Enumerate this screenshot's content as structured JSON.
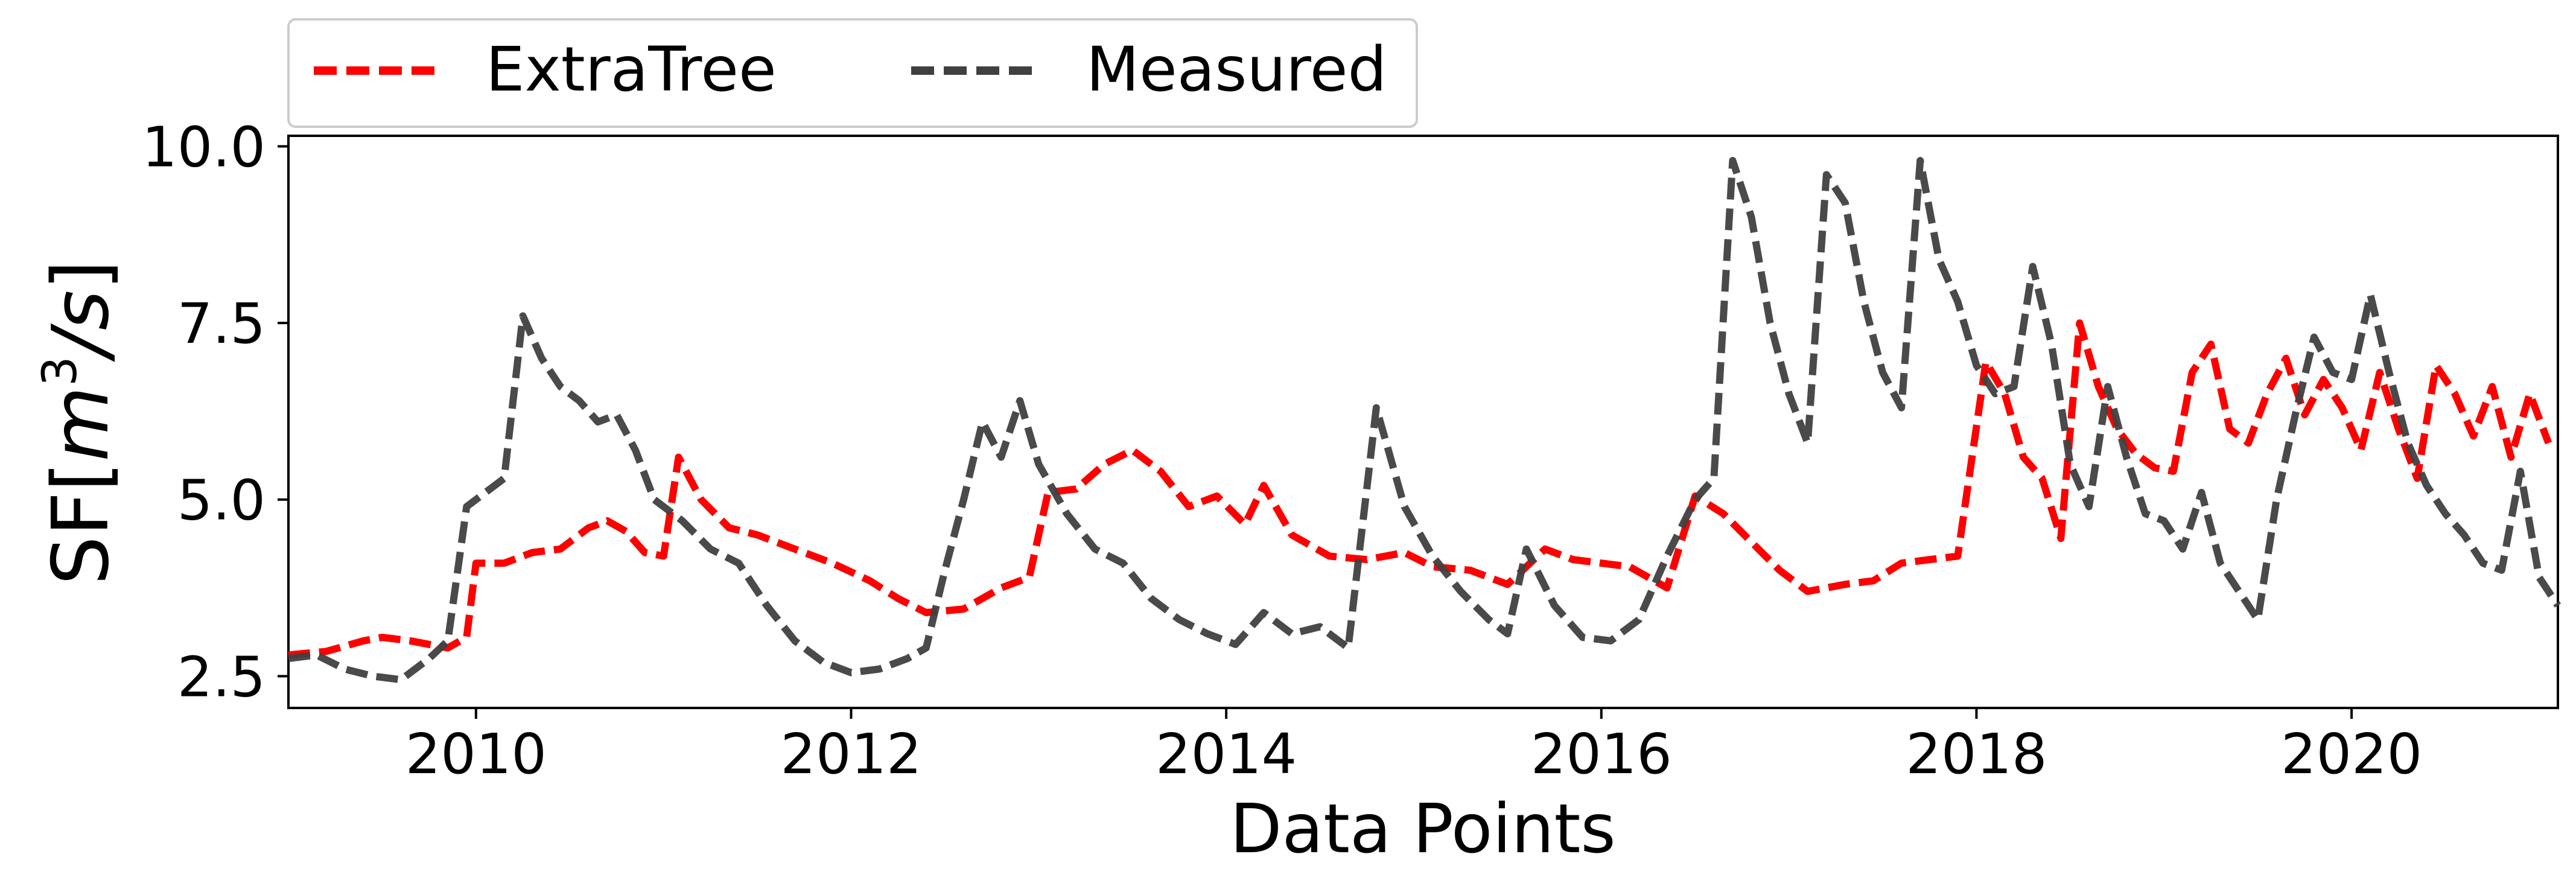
{
  "chart_data": {
    "type": "line",
    "title": "",
    "xlabel": "Data Points",
    "ylabel": "SF[m³/s]",
    "ylabel_parts": {
      "base": "SF[",
      "unit": "m",
      "sup": "3",
      "rest": "/s",
      "close": "]"
    },
    "xlim": [
      2009.0,
      2021.1
    ],
    "ylim": [
      2.05,
      10.15
    ],
    "xticks": [
      2010,
      2012,
      2014,
      2016,
      2018,
      2020
    ],
    "xtick_labels": [
      "2010",
      "2012",
      "2014",
      "2016",
      "2018",
      "2020"
    ],
    "yticks": [
      2.5,
      5.0,
      7.5,
      10.0
    ],
    "ytick_labels": [
      "2.5",
      "5.0",
      "7.5",
      "10.0"
    ],
    "grid": false,
    "legend": {
      "placement": "top-left-outside",
      "columns": 2
    },
    "series": [
      {
        "name": "ExtraTree",
        "color": "#ff0000",
        "dash": "dashed",
        "points": [
          [
            2009.0,
            2.8
          ],
          [
            2009.2,
            2.85
          ],
          [
            2009.4,
            3.0
          ],
          [
            2009.5,
            3.05
          ],
          [
            2009.65,
            3.0
          ],
          [
            2009.75,
            2.95
          ],
          [
            2009.85,
            2.9
          ],
          [
            2009.95,
            3.05
          ],
          [
            2010.0,
            4.1
          ],
          [
            2010.15,
            4.1
          ],
          [
            2010.3,
            4.25
          ],
          [
            2010.45,
            4.3
          ],
          [
            2010.6,
            4.6
          ],
          [
            2010.7,
            4.7
          ],
          [
            2010.8,
            4.55
          ],
          [
            2010.9,
            4.25
          ],
          [
            2011.0,
            4.2
          ],
          [
            2011.08,
            5.6
          ],
          [
            2011.2,
            5.0
          ],
          [
            2011.35,
            4.6
          ],
          [
            2011.5,
            4.5
          ],
          [
            2011.7,
            4.3
          ],
          [
            2011.9,
            4.1
          ],
          [
            2012.1,
            3.85
          ],
          [
            2012.25,
            3.6
          ],
          [
            2012.4,
            3.4
          ],
          [
            2012.6,
            3.45
          ],
          [
            2012.8,
            3.75
          ],
          [
            2012.95,
            3.9
          ],
          [
            2013.05,
            5.1
          ],
          [
            2013.2,
            5.15
          ],
          [
            2013.35,
            5.5
          ],
          [
            2013.5,
            5.7
          ],
          [
            2013.65,
            5.4
          ],
          [
            2013.8,
            4.9
          ],
          [
            2013.95,
            5.05
          ],
          [
            2014.1,
            4.65
          ],
          [
            2014.2,
            5.2
          ],
          [
            2014.35,
            4.5
          ],
          [
            2014.55,
            4.2
          ],
          [
            2014.75,
            4.15
          ],
          [
            2014.95,
            4.25
          ],
          [
            2015.1,
            4.05
          ],
          [
            2015.3,
            4.0
          ],
          [
            2015.5,
            3.8
          ],
          [
            2015.7,
            4.3
          ],
          [
            2015.85,
            4.15
          ],
          [
            2016.0,
            4.1
          ],
          [
            2016.15,
            4.05
          ],
          [
            2016.35,
            3.75
          ],
          [
            2016.5,
            5.05
          ],
          [
            2016.65,
            4.8
          ],
          [
            2016.8,
            4.4
          ],
          [
            2016.95,
            4.0
          ],
          [
            2017.1,
            3.7
          ],
          [
            2017.3,
            3.8
          ],
          [
            2017.45,
            3.85
          ],
          [
            2017.6,
            4.1
          ],
          [
            2017.75,
            4.15
          ],
          [
            2017.9,
            4.2
          ],
          [
            2018.05,
            6.95
          ],
          [
            2018.15,
            6.5
          ],
          [
            2018.25,
            5.6
          ],
          [
            2018.35,
            5.3
          ],
          [
            2018.45,
            4.45
          ],
          [
            2018.55,
            7.5
          ],
          [
            2018.65,
            6.6
          ],
          [
            2018.75,
            6.0
          ],
          [
            2018.85,
            5.65
          ],
          [
            2018.95,
            5.45
          ],
          [
            2019.05,
            5.4
          ],
          [
            2019.15,
            6.8
          ],
          [
            2019.25,
            7.2
          ],
          [
            2019.35,
            6.0
          ],
          [
            2019.45,
            5.8
          ],
          [
            2019.55,
            6.5
          ],
          [
            2019.65,
            7.0
          ],
          [
            2019.75,
            6.2
          ],
          [
            2019.85,
            6.7
          ],
          [
            2019.95,
            6.3
          ],
          [
            2020.05,
            5.7
          ],
          [
            2020.15,
            6.8
          ],
          [
            2020.25,
            6.0
          ],
          [
            2020.35,
            5.3
          ],
          [
            2020.45,
            6.9
          ],
          [
            2020.55,
            6.5
          ],
          [
            2020.65,
            5.9
          ],
          [
            2020.75,
            6.6
          ],
          [
            2020.85,
            5.6
          ],
          [
            2020.95,
            6.5
          ],
          [
            2021.05,
            5.8
          ]
        ]
      },
      {
        "name": "Measured",
        "color": "#404040",
        "dash": "dashed",
        "points": [
          [
            2009.0,
            2.75
          ],
          [
            2009.15,
            2.8
          ],
          [
            2009.3,
            2.6
          ],
          [
            2009.45,
            2.5
          ],
          [
            2009.6,
            2.45
          ],
          [
            2009.75,
            2.75
          ],
          [
            2009.85,
            3.0
          ],
          [
            2009.95,
            4.9
          ],
          [
            2010.05,
            5.1
          ],
          [
            2010.15,
            5.3
          ],
          [
            2010.25,
            7.6
          ],
          [
            2010.35,
            7.0
          ],
          [
            2010.45,
            6.6
          ],
          [
            2010.55,
            6.4
          ],
          [
            2010.65,
            6.1
          ],
          [
            2010.75,
            6.2
          ],
          [
            2010.85,
            5.7
          ],
          [
            2010.95,
            5.0
          ],
          [
            2011.1,
            4.7
          ],
          [
            2011.25,
            4.3
          ],
          [
            2011.4,
            4.1
          ],
          [
            2011.55,
            3.5
          ],
          [
            2011.7,
            3.0
          ],
          [
            2011.85,
            2.7
          ],
          [
            2012.0,
            2.55
          ],
          [
            2012.15,
            2.6
          ],
          [
            2012.3,
            2.75
          ],
          [
            2012.4,
            2.9
          ],
          [
            2012.5,
            4.0
          ],
          [
            2012.6,
            5.0
          ],
          [
            2012.7,
            6.1
          ],
          [
            2012.8,
            5.6
          ],
          [
            2012.9,
            6.4
          ],
          [
            2013.0,
            5.5
          ],
          [
            2013.15,
            4.8
          ],
          [
            2013.3,
            4.3
          ],
          [
            2013.45,
            4.1
          ],
          [
            2013.6,
            3.6
          ],
          [
            2013.75,
            3.3
          ],
          [
            2013.9,
            3.1
          ],
          [
            2014.05,
            2.95
          ],
          [
            2014.2,
            3.4
          ],
          [
            2014.35,
            3.1
          ],
          [
            2014.5,
            3.2
          ],
          [
            2014.65,
            2.9
          ],
          [
            2014.8,
            6.3
          ],
          [
            2014.95,
            4.9
          ],
          [
            2015.1,
            4.2
          ],
          [
            2015.25,
            3.7
          ],
          [
            2015.4,
            3.3
          ],
          [
            2015.5,
            3.1
          ],
          [
            2015.6,
            4.3
          ],
          [
            2015.75,
            3.5
          ],
          [
            2015.9,
            3.05
          ],
          [
            2016.05,
            3.0
          ],
          [
            2016.2,
            3.3
          ],
          [
            2016.35,
            4.2
          ],
          [
            2016.5,
            5.0
          ],
          [
            2016.6,
            5.3
          ],
          [
            2016.7,
            9.8
          ],
          [
            2016.8,
            9.0
          ],
          [
            2016.9,
            7.5
          ],
          [
            2017.0,
            6.5
          ],
          [
            2017.1,
            5.8
          ],
          [
            2017.2,
            9.6
          ],
          [
            2017.3,
            9.2
          ],
          [
            2017.4,
            7.8
          ],
          [
            2017.5,
            6.8
          ],
          [
            2017.6,
            6.3
          ],
          [
            2017.7,
            9.8
          ],
          [
            2017.8,
            8.4
          ],
          [
            2017.9,
            7.8
          ],
          [
            2018.0,
            6.9
          ],
          [
            2018.1,
            6.5
          ],
          [
            2018.2,
            6.6
          ],
          [
            2018.3,
            8.3
          ],
          [
            2018.4,
            7.2
          ],
          [
            2018.5,
            5.5
          ],
          [
            2018.6,
            4.9
          ],
          [
            2018.7,
            6.6
          ],
          [
            2018.8,
            5.6
          ],
          [
            2018.9,
            4.8
          ],
          [
            2019.0,
            4.7
          ],
          [
            2019.1,
            4.3
          ],
          [
            2019.2,
            5.1
          ],
          [
            2019.3,
            4.1
          ],
          [
            2019.4,
            3.7
          ],
          [
            2019.5,
            3.3
          ],
          [
            2019.6,
            5.0
          ],
          [
            2019.7,
            6.2
          ],
          [
            2019.8,
            7.3
          ],
          [
            2019.9,
            6.8
          ],
          [
            2020.0,
            6.7
          ],
          [
            2020.1,
            7.9
          ],
          [
            2020.2,
            6.8
          ],
          [
            2020.3,
            5.8
          ],
          [
            2020.4,
            5.2
          ],
          [
            2020.5,
            4.8
          ],
          [
            2020.6,
            4.5
          ],
          [
            2020.7,
            4.1
          ],
          [
            2020.8,
            4.0
          ],
          [
            2020.9,
            5.4
          ],
          [
            2021.0,
            3.9
          ],
          [
            2021.1,
            3.5
          ]
        ]
      }
    ]
  }
}
